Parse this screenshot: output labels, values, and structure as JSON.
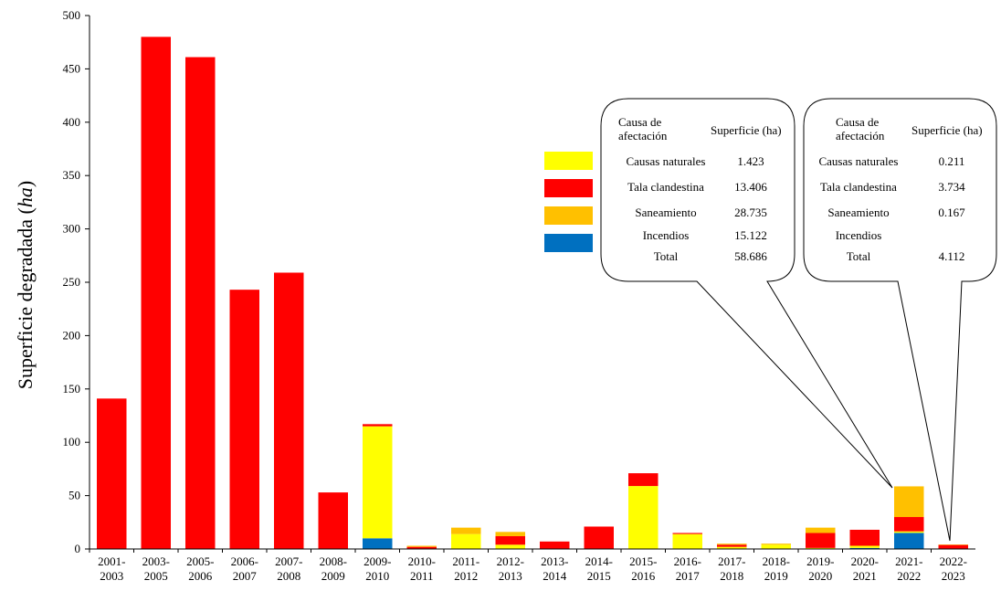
{
  "chart_data": {
    "type": "bar",
    "stacked": true,
    "ylabel_main": "Superficie degradada",
    "ylabel_unit": "ha",
    "ylim": [
      0,
      500
    ],
    "yticks": [
      0,
      50,
      100,
      150,
      200,
      250,
      300,
      350,
      400,
      450,
      500
    ],
    "categories": [
      [
        "2001-",
        "2003"
      ],
      [
        "2003-",
        "2005"
      ],
      [
        "2005-",
        "2006"
      ],
      [
        "2006-",
        "2007"
      ],
      [
        "2007-",
        "2008"
      ],
      [
        "2008-",
        "2009"
      ],
      [
        "2009-",
        "2010"
      ],
      [
        "2010-",
        "2011"
      ],
      [
        "2011-",
        "2012"
      ],
      [
        "2012-",
        "2013"
      ],
      [
        "2013-",
        "2014"
      ],
      [
        "2014-",
        "2015"
      ],
      [
        "2015-",
        "2016"
      ],
      [
        "2016-",
        "2017"
      ],
      [
        "2017-",
        "2018"
      ],
      [
        "2018-",
        "2019"
      ],
      [
        "2019-",
        "2020"
      ],
      [
        "2020-",
        "2021"
      ],
      [
        "2021-",
        "2022"
      ],
      [
        "2022-",
        "2023"
      ]
    ],
    "series": [
      {
        "key": "incendios",
        "color": "#0070C0",
        "values": [
          0,
          0,
          0,
          0,
          0,
          0,
          10,
          0,
          0,
          0,
          0,
          0,
          0,
          0,
          0,
          0,
          0,
          1,
          15.122,
          0
        ]
      },
      {
        "key": "naturales",
        "color": "#FFFF00",
        "values": [
          0,
          0,
          0,
          0,
          0,
          0,
          105,
          0,
          14,
          4,
          0,
          0,
          59,
          14,
          2,
          4,
          1,
          2,
          1.423,
          0.211
        ]
      },
      {
        "key": "tala",
        "color": "#FF0000",
        "values": [
          141,
          480,
          461,
          243,
          259,
          53,
          2,
          2,
          0,
          8,
          7,
          21,
          12,
          1,
          2,
          0,
          14,
          15,
          13.406,
          3.734
        ]
      },
      {
        "key": "saneamiento",
        "color": "#FFC000",
        "values": [
          0,
          0,
          0,
          0,
          0,
          0,
          0,
          1,
          6,
          4,
          0,
          0,
          0,
          0,
          1,
          1,
          5,
          0,
          28.735,
          0.167
        ]
      }
    ],
    "legend_colors": [
      "#FFFF00",
      "#FF0000",
      "#FFC000",
      "#0070C0"
    ]
  },
  "callouts": [
    {
      "header_cause": [
        "Causa de",
        "afectación"
      ],
      "header_area": "Superficie (ha)",
      "rows": [
        {
          "cause": "Causas naturales",
          "area": "1.423"
        },
        {
          "cause": "Tala clandestina",
          "area": "13.406"
        },
        {
          "cause": "Saneamiento",
          "area": "28.735"
        },
        {
          "cause": "Incendios",
          "area": "15.122"
        },
        {
          "cause": "Total",
          "area": "58.686"
        }
      ]
    },
    {
      "header_cause": [
        "Causa de",
        "afectación"
      ],
      "header_area": "Superficie (ha)",
      "rows": [
        {
          "cause": "Causas naturales",
          "area": "0.211"
        },
        {
          "cause": "Tala clandestina",
          "area": "3.734"
        },
        {
          "cause": "Saneamiento",
          "area": "0.167"
        },
        {
          "cause": "Incendios",
          "area": ""
        },
        {
          "cause": "Total",
          "area": "4.112"
        }
      ]
    }
  ]
}
